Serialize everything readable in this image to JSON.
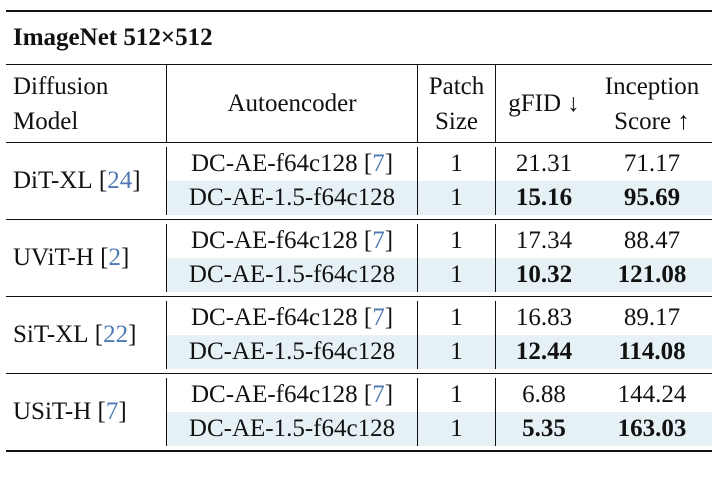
{
  "title": "ImageNet 512×512",
  "headers": {
    "model_line1": "Diffusion",
    "model_line2": "Model",
    "autoencoder": "Autoencoder",
    "patch_line1": "Patch",
    "patch_line2": "Size",
    "gfid": "gFID ↓",
    "is_line1": "Inception",
    "is_line2": "Score ↑"
  },
  "groups": [
    {
      "model": "DiT-XL",
      "model_cite": "24",
      "rows": [
        {
          "ae": "DC-AE-f64c128",
          "ae_cite": "7",
          "patch": "1",
          "gfid": "21.31",
          "is": "71.17"
        },
        {
          "ae": "DC-AE-1.5-f64c128",
          "patch": "1",
          "gfid": "15.16",
          "is": "95.69"
        }
      ]
    },
    {
      "model": "UViT-H",
      "model_cite": "2",
      "rows": [
        {
          "ae": "DC-AE-f64c128",
          "ae_cite": "7",
          "patch": "1",
          "gfid": "17.34",
          "is": "88.47"
        },
        {
          "ae": "DC-AE-1.5-f64c128",
          "patch": "1",
          "gfid": "10.32",
          "is": "121.08"
        }
      ]
    },
    {
      "model": "SiT-XL",
      "model_cite": "22",
      "rows": [
        {
          "ae": "DC-AE-f64c128",
          "ae_cite": "7",
          "patch": "1",
          "gfid": "16.83",
          "is": "89.17"
        },
        {
          "ae": "DC-AE-1.5-f64c128",
          "patch": "1",
          "gfid": "12.44",
          "is": "114.08"
        }
      ]
    },
    {
      "model": "USiT-H",
      "model_cite": "7",
      "rows": [
        {
          "ae": "DC-AE-f64c128",
          "ae_cite": "7",
          "patch": "1",
          "gfid": "6.88",
          "is": "144.24"
        },
        {
          "ae": "DC-AE-1.5-f64c128",
          "patch": "1",
          "gfid": "5.35",
          "is": "163.03"
        }
      ]
    }
  ],
  "colors": {
    "highlight_row": "#e6f1f6",
    "citation": "#4f79b4"
  }
}
